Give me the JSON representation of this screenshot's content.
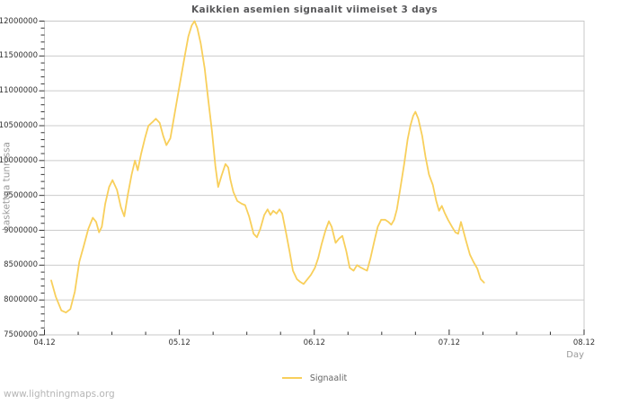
{
  "page": {
    "watermark": "www.lightningmaps.org"
  },
  "colors": {
    "background": "#ffffff",
    "line": "#f8cf5b",
    "grid": "#cccccc",
    "border": "#c8c8c8",
    "tick": "#333333",
    "tick_label": "#333333",
    "title": "#58585a",
    "muted": "#999999",
    "legend_text": "#666666",
    "watermark": "#b5b5b5"
  },
  "chart_data": {
    "type": "line",
    "title": "Kaikkien asemien signaalit viimeiset 3 days",
    "xlabel": "Day",
    "ylabel": "Laskettua tunnissa",
    "grid": "horizontal",
    "legend_position": "bottom-center",
    "x_tick_labels": [
      "04.12",
      "05.12",
      "06.12",
      "07.12",
      "08.12"
    ],
    "x_tick_hours": [
      0,
      24,
      48,
      72,
      96
    ],
    "x_minor_step_hours": 6,
    "xlim_hours": [
      0,
      96
    ],
    "y_ticks": [
      7500000,
      8000000,
      8500000,
      9000000,
      9500000,
      10000000,
      10500000,
      11000000,
      11500000,
      12000000
    ],
    "y_minor_step": 100000,
    "ylim": [
      7500000,
      12000000
    ],
    "series": [
      {
        "name": "Signaalit",
        "color": "#f8cf5b",
        "points": [
          [
            1.2,
            8280000
          ],
          [
            2,
            8050000
          ],
          [
            3,
            7850000
          ],
          [
            3.8,
            7820000
          ],
          [
            4.6,
            7870000
          ],
          [
            5.4,
            8120000
          ],
          [
            6.2,
            8550000
          ],
          [
            7,
            8780000
          ],
          [
            7.8,
            9020000
          ],
          [
            8.6,
            9180000
          ],
          [
            9.2,
            9120000
          ],
          [
            9.7,
            8970000
          ],
          [
            10.2,
            9050000
          ],
          [
            10.8,
            9380000
          ],
          [
            11.5,
            9620000
          ],
          [
            12.1,
            9720000
          ],
          [
            12.9,
            9580000
          ],
          [
            13.6,
            9330000
          ],
          [
            14.2,
            9200000
          ],
          [
            14.8,
            9500000
          ],
          [
            15.5,
            9800000
          ],
          [
            16.1,
            10000000
          ],
          [
            16.6,
            9860000
          ],
          [
            17.2,
            10100000
          ],
          [
            17.9,
            10330000
          ],
          [
            18.5,
            10500000
          ],
          [
            19.2,
            10550000
          ],
          [
            19.8,
            10600000
          ],
          [
            20.5,
            10540000
          ],
          [
            21.1,
            10360000
          ],
          [
            21.7,
            10220000
          ],
          [
            22.4,
            10320000
          ],
          [
            23,
            10600000
          ],
          [
            23.7,
            10920000
          ],
          [
            24.3,
            11200000
          ],
          [
            25,
            11520000
          ],
          [
            25.6,
            11780000
          ],
          [
            26.2,
            11940000
          ],
          [
            26.7,
            12000000
          ],
          [
            27.2,
            11900000
          ],
          [
            27.8,
            11680000
          ],
          [
            28.5,
            11320000
          ],
          [
            29.1,
            10900000
          ],
          [
            29.8,
            10420000
          ],
          [
            30.4,
            9920000
          ],
          [
            30.9,
            9620000
          ],
          [
            31.5,
            9780000
          ],
          [
            32.2,
            9950000
          ],
          [
            32.7,
            9900000
          ],
          [
            33.1,
            9720000
          ],
          [
            33.6,
            9550000
          ],
          [
            34.3,
            9420000
          ],
          [
            35.1,
            9380000
          ],
          [
            35.7,
            9360000
          ],
          [
            36.4,
            9200000
          ],
          [
            37.2,
            8950000
          ],
          [
            37.8,
            8900000
          ],
          [
            38.4,
            9020000
          ],
          [
            39.1,
            9220000
          ],
          [
            39.7,
            9300000
          ],
          [
            40.2,
            9220000
          ],
          [
            40.7,
            9280000
          ],
          [
            41.3,
            9240000
          ],
          [
            41.8,
            9300000
          ],
          [
            42.3,
            9240000
          ],
          [
            42.9,
            9000000
          ],
          [
            43.6,
            8700000
          ],
          [
            44.2,
            8420000
          ],
          [
            44.9,
            8300000
          ],
          [
            45.5,
            8260000
          ],
          [
            46.1,
            8230000
          ],
          [
            46.8,
            8300000
          ],
          [
            47.4,
            8360000
          ],
          [
            48.1,
            8460000
          ],
          [
            48.7,
            8600000
          ],
          [
            49.3,
            8800000
          ],
          [
            50,
            9000000
          ],
          [
            50.6,
            9130000
          ],
          [
            51.1,
            9050000
          ],
          [
            51.8,
            8820000
          ],
          [
            52.4,
            8880000
          ],
          [
            53,
            8920000
          ],
          [
            53.7,
            8700000
          ],
          [
            54.3,
            8460000
          ],
          [
            55,
            8420000
          ],
          [
            55.6,
            8500000
          ],
          [
            56.2,
            8470000
          ],
          [
            56.9,
            8440000
          ],
          [
            57.4,
            8420000
          ],
          [
            58,
            8600000
          ],
          [
            58.7,
            8850000
          ],
          [
            59.3,
            9050000
          ],
          [
            59.9,
            9150000
          ],
          [
            60.6,
            9150000
          ],
          [
            61.2,
            9120000
          ],
          [
            61.7,
            9080000
          ],
          [
            62.2,
            9150000
          ],
          [
            62.7,
            9300000
          ],
          [
            63.3,
            9600000
          ],
          [
            64,
            9950000
          ],
          [
            64.6,
            10300000
          ],
          [
            65.1,
            10500000
          ],
          [
            65.6,
            10640000
          ],
          [
            66,
            10700000
          ],
          [
            66.5,
            10600000
          ],
          [
            67.2,
            10350000
          ],
          [
            67.8,
            10050000
          ],
          [
            68.4,
            9800000
          ],
          [
            69.1,
            9650000
          ],
          [
            69.7,
            9420000
          ],
          [
            70.2,
            9280000
          ],
          [
            70.7,
            9350000
          ],
          [
            71.2,
            9250000
          ],
          [
            71.8,
            9150000
          ],
          [
            72.5,
            9050000
          ],
          [
            73.1,
            8970000
          ],
          [
            73.6,
            8950000
          ],
          [
            74.1,
            9120000
          ],
          [
            74.5,
            9000000
          ],
          [
            75,
            8850000
          ],
          [
            75.7,
            8650000
          ],
          [
            76.3,
            8550000
          ],
          [
            77,
            8450000
          ],
          [
            77.6,
            8300000
          ],
          [
            78.2,
            8250000
          ]
        ]
      }
    ]
  }
}
